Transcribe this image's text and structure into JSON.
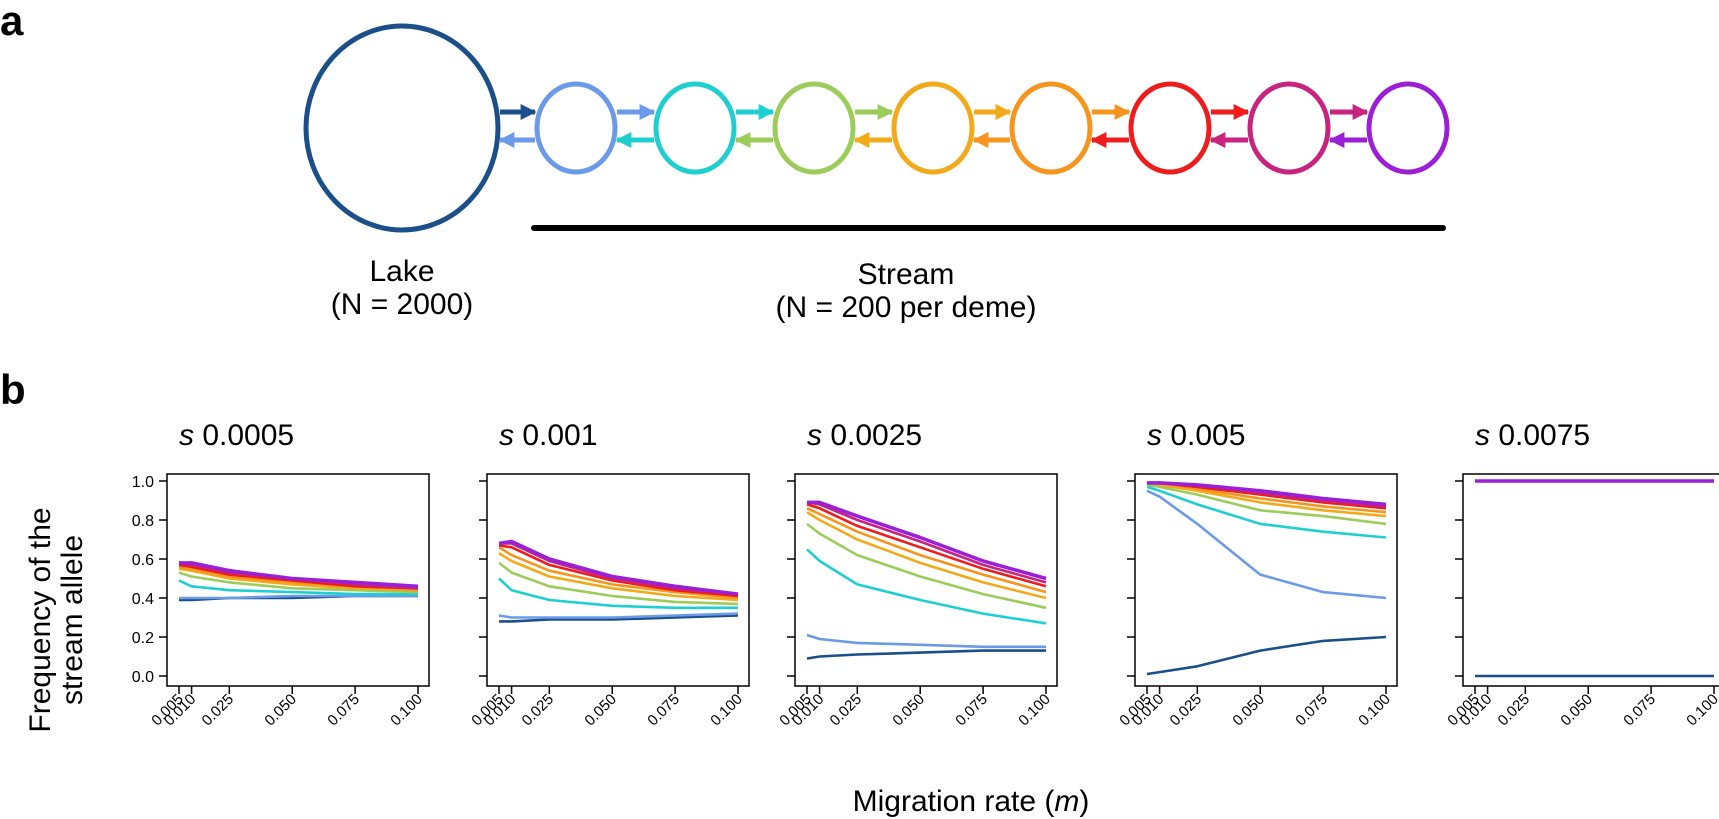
{
  "panel_a": {
    "letter": "a",
    "lake_label": "Lake",
    "lake_n": "(N = 2000)",
    "stream_label": "Stream",
    "stream_n": "(N = 200 per deme)",
    "colors": {
      "lake": "#1b4f8a",
      "demes": [
        "#6a9ae8",
        "#1fcfd0",
        "#9ccc5a",
        "#f2aa1a",
        "#f7941d",
        "#ee1c1c",
        "#c8237f",
        "#9b1fd6"
      ],
      "bar": "#000000"
    }
  },
  "panel_b": {
    "letter": "b"
  },
  "chart_data": {
    "type": "line",
    "xlabel_prefix": "Migration rate (",
    "xlabel_var": "m",
    "xlabel_suffix": ")",
    "ylabel_line1": "Frequency of the",
    "ylabel_line2": "stream allele",
    "ylim": [
      0,
      1
    ],
    "yticks": [
      0.0,
      0.2,
      0.4,
      0.6,
      0.8,
      1.0
    ],
    "ytick_labels": [
      "0.0",
      "0.2",
      "0.4",
      "0.6",
      "0.8",
      "1.0"
    ],
    "x": [
      0.005,
      0.01,
      0.025,
      0.05,
      0.075,
      0.1
    ],
    "x_labels": [
      "0.005",
      "0.010",
      "0.025",
      "0.050",
      "0.075",
      "0.100"
    ],
    "series_colors": [
      "#1b4f8a",
      "#6a9ae8",
      "#1fcfd0",
      "#9ccc5a",
      "#f2aa1a",
      "#f7941d",
      "#ee1c1c",
      "#c8237f",
      "#9b1fd6"
    ],
    "series_names": [
      "Lake",
      "Deme 1",
      "Deme 2",
      "Deme 3",
      "Deme 4",
      "Deme 5",
      "Deme 6",
      "Deme 7",
      "Deme 8"
    ],
    "panels": [
      {
        "title_var": "s",
        "title_val": "0.0005",
        "series": [
          [
            0.39,
            0.39,
            0.4,
            0.4,
            0.41,
            0.41
          ],
          [
            0.4,
            0.4,
            0.4,
            0.41,
            0.41,
            0.41
          ],
          [
            0.49,
            0.46,
            0.44,
            0.43,
            0.42,
            0.42
          ],
          [
            0.53,
            0.51,
            0.48,
            0.45,
            0.44,
            0.43
          ],
          [
            0.55,
            0.54,
            0.5,
            0.47,
            0.45,
            0.44
          ],
          [
            0.56,
            0.55,
            0.51,
            0.48,
            0.46,
            0.44
          ],
          [
            0.57,
            0.56,
            0.52,
            0.49,
            0.46,
            0.45
          ],
          [
            0.58,
            0.57,
            0.53,
            0.5,
            0.47,
            0.45
          ],
          [
            0.58,
            0.58,
            0.54,
            0.5,
            0.48,
            0.46
          ]
        ]
      },
      {
        "title_var": "s",
        "title_val": "0.001",
        "series": [
          [
            0.28,
            0.28,
            0.29,
            0.29,
            0.3,
            0.31
          ],
          [
            0.31,
            0.3,
            0.3,
            0.3,
            0.31,
            0.32
          ],
          [
            0.5,
            0.44,
            0.39,
            0.36,
            0.35,
            0.35
          ],
          [
            0.58,
            0.53,
            0.46,
            0.41,
            0.38,
            0.37
          ],
          [
            0.63,
            0.59,
            0.51,
            0.45,
            0.41,
            0.39
          ],
          [
            0.66,
            0.62,
            0.54,
            0.47,
            0.43,
            0.4
          ],
          [
            0.67,
            0.66,
            0.57,
            0.49,
            0.44,
            0.41
          ],
          [
            0.68,
            0.68,
            0.59,
            0.5,
            0.45,
            0.42
          ],
          [
            0.68,
            0.69,
            0.6,
            0.51,
            0.46,
            0.42
          ]
        ]
      },
      {
        "title_var": "s",
        "title_val": "0.0025",
        "series": [
          [
            0.09,
            0.1,
            0.11,
            0.12,
            0.13,
            0.13
          ],
          [
            0.21,
            0.19,
            0.17,
            0.16,
            0.15,
            0.15
          ],
          [
            0.65,
            0.59,
            0.47,
            0.39,
            0.32,
            0.27
          ],
          [
            0.78,
            0.73,
            0.62,
            0.51,
            0.42,
            0.35
          ],
          [
            0.84,
            0.8,
            0.7,
            0.58,
            0.48,
            0.4
          ],
          [
            0.86,
            0.83,
            0.74,
            0.62,
            0.52,
            0.43
          ],
          [
            0.88,
            0.86,
            0.77,
            0.66,
            0.55,
            0.46
          ],
          [
            0.89,
            0.88,
            0.8,
            0.69,
            0.57,
            0.48
          ],
          [
            0.89,
            0.89,
            0.82,
            0.71,
            0.59,
            0.5
          ]
        ]
      },
      {
        "title_var": "s",
        "title_val": "0.005",
        "series": [
          [
            0.01,
            0.02,
            0.05,
            0.13,
            0.18,
            0.2
          ],
          [
            0.95,
            0.92,
            0.78,
            0.52,
            0.43,
            0.4
          ],
          [
            0.97,
            0.95,
            0.88,
            0.78,
            0.74,
            0.71
          ],
          [
            0.98,
            0.97,
            0.93,
            0.85,
            0.82,
            0.78
          ],
          [
            0.99,
            0.98,
            0.95,
            0.89,
            0.85,
            0.82
          ],
          [
            0.99,
            0.99,
            0.96,
            0.91,
            0.87,
            0.84
          ],
          [
            0.99,
            0.99,
            0.97,
            0.93,
            0.89,
            0.86
          ],
          [
            0.99,
            0.99,
            0.98,
            0.94,
            0.9,
            0.87
          ],
          [
            0.99,
            0.99,
            0.98,
            0.95,
            0.91,
            0.88
          ]
        ]
      },
      {
        "title_var": "s",
        "title_val": "0.0075",
        "series": [
          [
            0.0,
            0.0,
            0.0,
            0.0,
            0.0,
            0.0
          ],
          null,
          null,
          null,
          null,
          null,
          null,
          null,
          [
            1.0,
            1.0,
            1.0,
            1.0,
            1.0,
            1.0
          ]
        ]
      }
    ]
  }
}
